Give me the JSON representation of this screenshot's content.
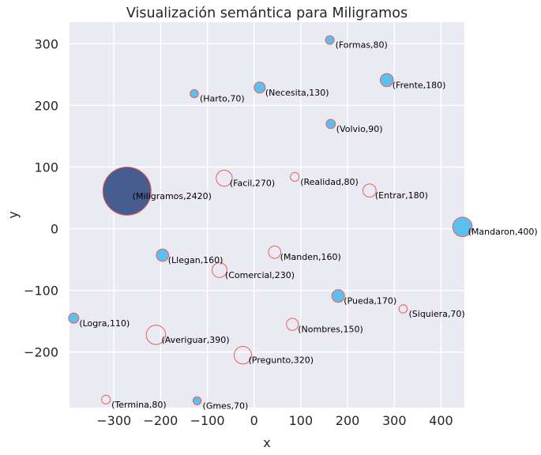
{
  "chart_data": {
    "type": "scatter",
    "title": "Visualización semántica para Miligramos",
    "xlabel": "x",
    "ylabel": "y",
    "xlim": [
      -395,
      450
    ],
    "ylim": [
      -290,
      335
    ],
    "xticks": [
      -300,
      -200,
      -100,
      0,
      100,
      200,
      300,
      400
    ],
    "yticks": [
      -200,
      -100,
      0,
      100,
      200,
      300
    ],
    "xtick_labels": [
      "−300",
      "−200",
      "−100",
      "0",
      "100",
      "200",
      "300",
      "400"
    ],
    "ytick_labels": [
      "−200",
      "−100",
      "0",
      "100",
      "200",
      "300"
    ],
    "grid": true,
    "colors": {
      "background": "#eaeaf2",
      "grid": "#ffffff",
      "filled": "#5bc0f0",
      "main": "#475c8f",
      "edge": "#e8605a"
    },
    "points": [
      {
        "word": "Formas",
        "value": 80,
        "x": 162,
        "y": 306,
        "style": "filled",
        "label": "(Formas,80)"
      },
      {
        "word": "Frente",
        "value": 180,
        "x": 284,
        "y": 241,
        "style": "filled",
        "label": "(Frente,180)"
      },
      {
        "word": "Necesita",
        "value": 130,
        "x": 12,
        "y": 229,
        "style": "filled",
        "label": "(Necesita,130)"
      },
      {
        "word": "Harto",
        "value": 70,
        "x": -128,
        "y": 219,
        "style": "filled",
        "label": "(Harto,70)"
      },
      {
        "word": "Volvio",
        "value": 90,
        "x": 164,
        "y": 170,
        "style": "filled",
        "label": "(Volvio,90)"
      },
      {
        "word": "Facil",
        "value": 270,
        "x": -64,
        "y": 82,
        "style": "hollow",
        "label": "(Facil,270)"
      },
      {
        "word": "Realidad",
        "value": 80,
        "x": 87,
        "y": 84,
        "style": "hollow",
        "label": "(Realidad,80)"
      },
      {
        "word": "Miligramos",
        "value": 2420,
        "x": -272,
        "y": 61,
        "style": "main",
        "label": "(Miligramos,2420)"
      },
      {
        "word": "Entrar",
        "value": 180,
        "x": 247,
        "y": 62,
        "style": "hollow",
        "label": "(Entrar,180)"
      },
      {
        "word": "Mandaron",
        "value": 400,
        "x": 446,
        "y": 3,
        "style": "filled",
        "label": "(Mandaron,400)"
      },
      {
        "word": "Llegan",
        "value": 160,
        "x": -196,
        "y": -43,
        "style": "filled",
        "label": "(Llegan,160)"
      },
      {
        "word": "Manden",
        "value": 160,
        "x": 44,
        "y": -38,
        "style": "hollow",
        "label": "(Manden,160)"
      },
      {
        "word": "Comercial",
        "value": 230,
        "x": -74,
        "y": -67,
        "style": "hollow",
        "label": "(Comercial,230)"
      },
      {
        "word": "Pueda",
        "value": 170,
        "x": 180,
        "y": -109,
        "style": "filled",
        "label": "(Pueda,170)"
      },
      {
        "word": "Siquiera",
        "value": 70,
        "x": 319,
        "y": -130,
        "style": "hollow",
        "label": "(Siquiera,70)"
      },
      {
        "word": "Logra",
        "value": 110,
        "x": -386,
        "y": -145,
        "style": "filled",
        "label": "(Logra,110)"
      },
      {
        "word": "Nombres",
        "value": 150,
        "x": 82,
        "y": -155,
        "style": "hollow",
        "label": "(Nombres,150)"
      },
      {
        "word": "Averiguar",
        "value": 390,
        "x": -210,
        "y": -172,
        "style": "hollow",
        "label": "(Averiguar,390)"
      },
      {
        "word": "Pregunto",
        "value": 320,
        "x": -24,
        "y": -205,
        "style": "hollow",
        "label": "(Pregunto,320)"
      },
      {
        "word": "Termina",
        "value": 80,
        "x": -317,
        "y": -277,
        "style": "hollow",
        "label": "(Termina,80)"
      },
      {
        "word": "Gmes",
        "value": 70,
        "x": -122,
        "y": -279,
        "style": "filled",
        "label": "(Gmes,70)"
      }
    ]
  }
}
